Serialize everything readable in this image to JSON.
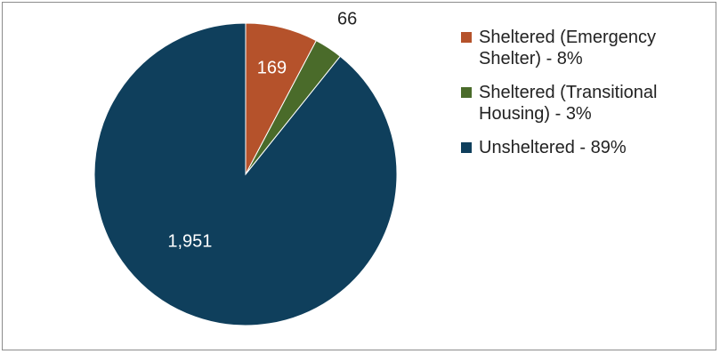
{
  "chart_data": {
    "type": "pie",
    "title": "",
    "slices": [
      {
        "label": "Sheltered (Emergency Shelter) - 8%",
        "value": 169,
        "value_label": "169",
        "color": "#b5522b",
        "label_color": "#ffffff",
        "label_position": "inside"
      },
      {
        "label": "Sheltered (Transitional Housing) - 3%",
        "value": 66,
        "value_label": "66",
        "color": "#4a6b2a",
        "label_color": "#222222",
        "label_position": "outside"
      },
      {
        "label": "Unsheltered - 89%",
        "value": 1951,
        "value_label": "1,951",
        "color": "#0f3f5c",
        "label_color": "#ffffff",
        "label_position": "inside"
      }
    ],
    "legend_position": "right",
    "start_angle": "top",
    "direction": "clockwise"
  }
}
